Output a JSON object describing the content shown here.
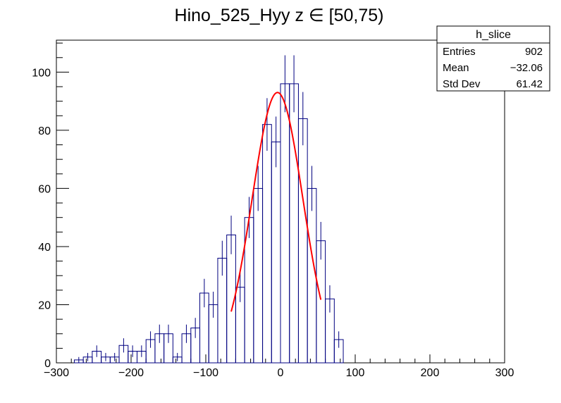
{
  "chart_data": {
    "type": "bar",
    "title": "Hino_525_Hyy z  ∈ [50,75)",
    "xlabel": "",
    "ylabel": "",
    "xlim": [
      -300,
      300
    ],
    "ylim": [
      0,
      111
    ],
    "x_ticks": [
      -300,
      -200,
      -100,
      0,
      100,
      200,
      300
    ],
    "y_ticks": [
      0,
      20,
      40,
      60,
      80,
      100
    ],
    "grid": false,
    "bin_width": 12,
    "bins_x": [
      -276,
      -264,
      -252,
      -240,
      -228,
      -216,
      -204,
      -192,
      -180,
      -168,
      -156,
      -144,
      -132,
      -120,
      -108,
      -96,
      -84,
      -72,
      -60,
      -48,
      -36,
      -24,
      -12,
      0,
      12,
      24,
      36,
      48,
      60,
      72
    ],
    "values": [
      1,
      2,
      4,
      2,
      2,
      6,
      4,
      4,
      8,
      10,
      10,
      2,
      10,
      12,
      24,
      20,
      36,
      44,
      26,
      50,
      60,
      82,
      76,
      96,
      96,
      84,
      60,
      42,
      22,
      8
    ],
    "histogram_color": "#000080",
    "fit": {
      "name": "gaus",
      "color": "#ff0000",
      "x_range": [
        -66,
        54
      ],
      "amplitude": 93,
      "mean": -4,
      "sigma": 34
    },
    "stats_box": {
      "title": "h_slice",
      "rows": [
        {
          "label": "Entries",
          "value": "902"
        },
        {
          "label": "Mean",
          "value": "−32.06"
        },
        {
          "label": "Std Dev",
          "value": "61.42"
        }
      ]
    }
  }
}
